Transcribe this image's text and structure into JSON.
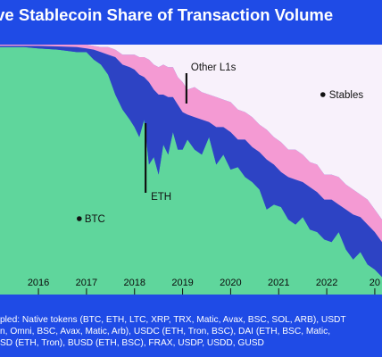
{
  "title": "ive Stablecoin Share of Transaction Volume",
  "chart_data": {
    "type": "area",
    "stacked": true,
    "normalized": true,
    "x_ticks": [
      "2016",
      "2017",
      "2018",
      "2019",
      "2020",
      "2021",
      "2022",
      "20"
    ],
    "ylim": [
      0,
      100
    ],
    "x": [
      2015.2,
      2015.7,
      2016.0,
      2016.4,
      2016.8,
      2017.0,
      2017.15,
      2017.3,
      2017.45,
      2017.6,
      2017.75,
      2017.9,
      2018.0,
      2018.1,
      2018.2,
      2018.3,
      2018.4,
      2018.5,
      2018.6,
      2018.7,
      2018.8,
      2018.9,
      2019.0,
      2019.1,
      2019.25,
      2019.4,
      2019.55,
      2019.7,
      2019.85,
      2020.0,
      2020.15,
      2020.3,
      2020.45,
      2020.6,
      2020.75,
      2020.9,
      2021.05,
      2021.2,
      2021.35,
      2021.5,
      2021.65,
      2021.8,
      2021.95,
      2022.1,
      2022.25,
      2022.4,
      2022.55,
      2022.7,
      2022.85,
      2023.0,
      2023.15
    ],
    "series": [
      {
        "name": "BTC",
        "color": "#5fd69c",
        "values": [
          99,
          99,
          98.5,
          98,
          97,
          97,
          94,
          92,
          88,
          80,
          74,
          70,
          67,
          63,
          70,
          52,
          55,
          48,
          60,
          56,
          65,
          58,
          58,
          62,
          58,
          56,
          63,
          52,
          56,
          50,
          51,
          47,
          45,
          42,
          34,
          36,
          35,
          30,
          28,
          31,
          26,
          25,
          22,
          21,
          25,
          18,
          14,
          17,
          12,
          10,
          7
        ]
      },
      {
        "name": "ETH",
        "color": "#2d43c4",
        "values": [
          0.5,
          0.5,
          1,
          1.3,
          2,
          1.5,
          4,
          5,
          8,
          15,
          18,
          21,
          23,
          25,
          17,
          33,
          27,
          32,
          20,
          23,
          14,
          18,
          15,
          10,
          13,
          14,
          6,
          15,
          11,
          15,
          11,
          15,
          14,
          15,
          20,
          16,
          14,
          17,
          18,
          14,
          17,
          16,
          16,
          17,
          11,
          16,
          18,
          14,
          16,
          15,
          14
        ]
      },
      {
        "name": "Other L1s",
        "color": "#f49ad3",
        "values": [
          0.5,
          0.5,
          0.5,
          0.7,
          1,
          1.5,
          1.5,
          2,
          3,
          3,
          4,
          5,
          6,
          7,
          8,
          9,
          10,
          11,
          12,
          12,
          12,
          11,
          12,
          10,
          12,
          11,
          11,
          12,
          11,
          12,
          12,
          11,
          12,
          11,
          12,
          11,
          12,
          11,
          12,
          11,
          10,
          11,
          10,
          10,
          11,
          10,
          10,
          9,
          10,
          9,
          9
        ]
      },
      {
        "name": "Stables",
        "color": "#f8f1fb",
        "values": [
          0,
          0,
          0,
          0,
          0,
          0,
          0.5,
          1,
          1,
          2,
          4,
          4,
          4,
          5,
          5,
          6,
          8,
          9,
          8,
          9,
          9,
          13,
          15,
          18,
          17,
          19,
          20,
          21,
          22,
          23,
          26,
          27,
          29,
          32,
          34,
          37,
          39,
          42,
          42,
          44,
          47,
          48,
          52,
          52,
          53,
          56,
          58,
          60,
          62,
          66,
          70
        ]
      }
    ]
  },
  "annotations": [
    {
      "label": "BTC"
    },
    {
      "label": "ETH"
    },
    {
      "label": "Other L1s"
    },
    {
      "label": "Stables"
    }
  ],
  "footnote": [
    "pled: Native tokens (BTC, ETH, LTC, XRP, TRX, Matic, Avax, BSC, SOL, ARB), USDT",
    "n, Omni, BSC, Avax, Matic, Arb), USDC (ETH, Tron, BSC), DAI (ETH, BSC, Matic,",
    "SD (ETH, Tron), BUSD (ETH, BSC), FRAX, USDP, USDD, GUSD"
  ]
}
